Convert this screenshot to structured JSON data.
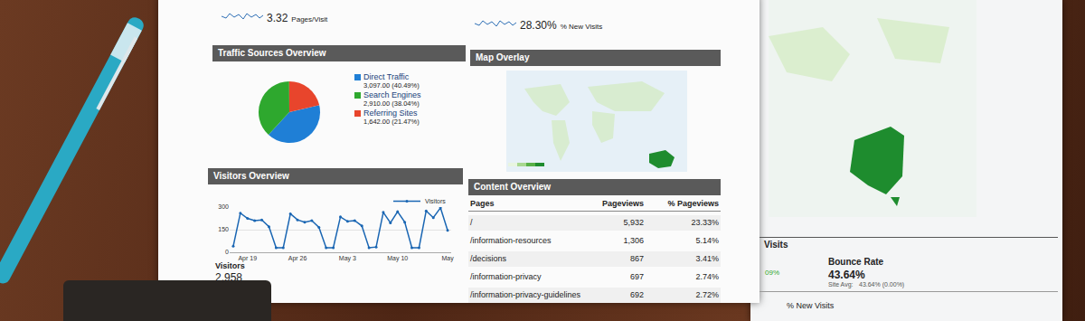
{
  "header_stats": [
    {
      "value": "3.32",
      "label": "Pages/Visit"
    },
    {
      "value": "28.30%",
      "label": "% New Visits"
    }
  ],
  "chart_data": [
    {
      "type": "pie",
      "title": "Traffic Sources Overview",
      "categories": [
        "Direct Traffic",
        "Search Engines",
        "Referring Sites"
      ],
      "values": [
        3097,
        2910,
        1642
      ],
      "value_labels": [
        "3,097.00 (40.49%)",
        "2,910.00 (38.04%)",
        "1,642.00 (21.47%)"
      ],
      "colors": [
        "#1f7fd6",
        "#2ea82e",
        "#e8452c"
      ]
    },
    {
      "type": "line",
      "title": "Visitors Overview",
      "categories": [
        null,
        null,
        "Apr 19",
        null,
        null,
        null,
        null,
        null,
        null,
        "Apr 26",
        null,
        null,
        null,
        null,
        null,
        null,
        "May 3",
        null,
        null,
        null,
        null,
        null,
        null,
        "May 10",
        null,
        null,
        null,
        null,
        null,
        null,
        "May"
      ],
      "series": [
        {
          "name": "Visitors",
          "color": "#1a66b3",
          "values": [
            40,
            260,
            225,
            210,
            215,
            170,
            30,
            30,
            255,
            215,
            200,
            210,
            165,
            30,
            30,
            235,
            205,
            210,
            175,
            30,
            35,
            265,
            195,
            270,
            200,
            30,
            30,
            275,
            230,
            295,
            145
          ]
        }
      ],
      "ylim": [
        0,
        300
      ],
      "yticks": [
        0,
        150,
        300
      ],
      "grid": true,
      "legend": "top-right",
      "marker": "circle",
      "line_style": "solid"
    }
  ],
  "visitors_total": {
    "label": "Visitors",
    "value": "2,958"
  },
  "map_overlay": {
    "title": "Map Overlay"
  },
  "content_table": {
    "title": "Content Overview",
    "columns": [
      "Pages",
      "Pageviews",
      "% Pageviews"
    ],
    "rows": [
      [
        "/",
        "5,932",
        "23.33%"
      ],
      [
        "/information-resources",
        "1,306",
        "5.14%"
      ],
      [
        "/decisions",
        "867",
        "3.41%"
      ],
      [
        "/information-privacy",
        "697",
        "2.74%"
      ],
      [
        "/information-privacy-guidelines",
        "692",
        "2.72%"
      ]
    ]
  },
  "side_report": {
    "visits": "Visits",
    "new_visits_pct": "09%",
    "bounce_title": "Bounce Rate",
    "bounce_value": "43.64%",
    "site_avg_label": "Site Avg:",
    "site_avg_value": "43.64% (0.00%)",
    "new_visits_label": "% New Visits"
  }
}
